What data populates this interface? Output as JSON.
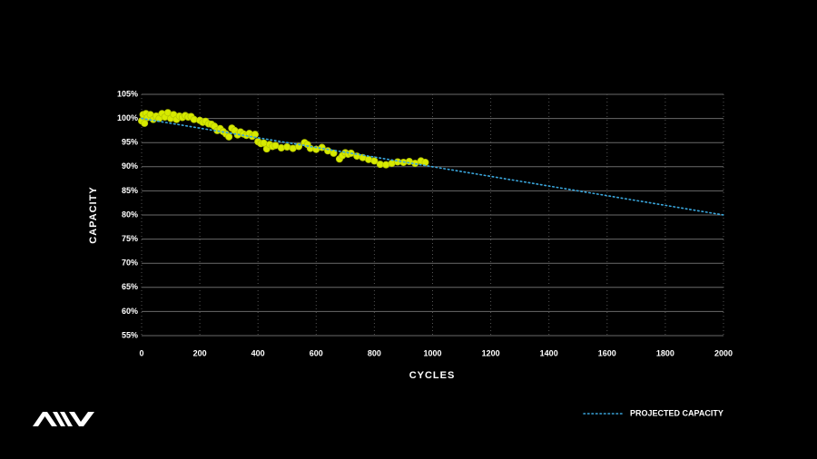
{
  "chart_data": {
    "type": "scatter",
    "xlabel": "CYCLES",
    "ylabel": "CAPACITY",
    "color": "#d7ea00",
    "x": [
      0,
      5,
      10,
      15,
      20,
      30,
      40,
      50,
      60,
      70,
      80,
      90,
      100,
      110,
      120,
      130,
      140,
      150,
      160,
      170,
      180,
      200,
      210,
      220,
      230,
      240,
      250,
      260,
      270,
      280,
      290,
      300,
      310,
      320,
      330,
      340,
      350,
      360,
      370,
      380,
      390,
      400,
      410,
      420,
      430,
      440,
      450,
      460,
      480,
      500,
      520,
      540,
      560,
      570,
      580,
      600,
      620,
      640,
      660,
      680,
      690,
      700,
      710,
      720,
      740,
      760,
      780,
      800,
      820,
      840,
      860,
      880,
      900,
      920,
      940,
      960,
      975
    ],
    "y": [
      99.5,
      100.8,
      99,
      101,
      100.2,
      100.8,
      99.8,
      100.5,
      100,
      101,
      100.3,
      101.2,
      100,
      100.8,
      99.8,
      100.5,
      100.2,
      100.6,
      100.3,
      100.4,
      99.8,
      99.6,
      99.2,
      99.4,
      98.9,
      98.8,
      98.4,
      97.5,
      97.9,
      97.3,
      96.8,
      96.2,
      98,
      97.5,
      96.6,
      97.2,
      96.8,
      96.5,
      96.9,
      96.3,
      96.7,
      95.2,
      94.8,
      94.9,
      93.7,
      94.6,
      94.2,
      94.4,
      93.9,
      94.1,
      93.8,
      94.2,
      95,
      94.6,
      93.8,
      93.6,
      94,
      93.3,
      92.8,
      91.6,
      92.3,
      92.9,
      92.6,
      92.8,
      92.2,
      91.9,
      91.5,
      91.2,
      90.5,
      90.4,
      90.7,
      91,
      90.9,
      91.1,
      90.7,
      91.2,
      90.9
    ],
    "projection": {
      "name": "PROJECTED CAPACITY",
      "color": "#3aa6dc",
      "x": [
        0,
        500,
        1000,
        1500,
        2000
      ],
      "values": [
        100,
        95,
        90,
        85,
        80
      ]
    },
    "xlim": [
      0,
      2000
    ],
    "xticks": [
      0,
      200,
      400,
      600,
      800,
      1000,
      1200,
      1400,
      1600,
      1800,
      2000
    ],
    "ylim": [
      55,
      105
    ],
    "yticks": [
      {
        "value": 55,
        "label": "55%"
      },
      {
        "value": 60,
        "label": "60%"
      },
      {
        "value": 65,
        "label": "65%"
      },
      {
        "value": 70,
        "label": "70%"
      },
      {
        "value": 75,
        "label": "75%"
      },
      {
        "value": 80,
        "label": "80%"
      },
      {
        "value": 85,
        "label": "85%"
      },
      {
        "value": 90,
        "label": "90%"
      },
      {
        "value": 95,
        "label": "95%"
      },
      {
        "value": 100,
        "label": "100%"
      },
      {
        "value": 105,
        "label": "105%"
      }
    ],
    "grid": true,
    "legend": "bottom-right"
  }
}
